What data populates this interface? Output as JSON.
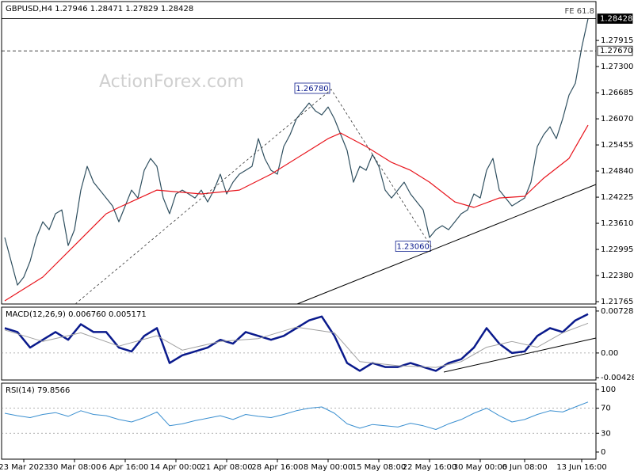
{
  "chart_data": [
    {
      "type": "line",
      "title": "GBPUSD,H4 1.27946 1.28471 1.27829 1.28428",
      "watermark": "ActionForex.com",
      "note": "FE 61.8",
      "xlim": [
        -0.5,
        93.25
      ],
      "ylim": [
        1.2171,
        1.2883
      ],
      "yticks": [
        1.27915,
        {
          "value": 1.273,
          "label": "1.27300"
        },
        1.26685,
        {
          "value": 1.2607,
          "label": "1.26070"
        },
        1.25455,
        {
          "value": 1.2484,
          "label": "1.24840"
        },
        1.24225,
        {
          "value": 1.2361,
          "label": "1.23610"
        },
        1.22995,
        {
          "value": 1.2238,
          "label": "1.22380"
        },
        1.21765
      ],
      "series": [
        {
          "color": "#2f4f5f",
          "values": [
            1.23275,
            1.22716,
            1.22156,
            1.22343,
            1.22716,
            1.23275,
            1.23647,
            1.23461,
            1.23834,
            1.23927,
            1.23088,
            1.23461,
            1.24393,
            1.24952,
            1.24579,
            1.24393,
            1.24206,
            1.2402,
            1.23647,
            1.2402,
            1.24393,
            1.24206,
            1.24859,
            1.25138,
            1.24952,
            1.24206,
            1.23834,
            1.243,
            1.24393,
            1.243,
            1.24206,
            1.24393,
            1.24113,
            1.24393,
            1.24766,
            1.243,
            1.24579,
            1.24766,
            1.24859,
            1.24952,
            1.25604,
            1.25138,
            1.24859,
            1.24766,
            1.25418,
            1.25697,
            1.2607,
            1.26256,
            1.26443,
            1.26256,
            1.26163,
            1.2635,
            1.2607,
            1.25697,
            1.25325,
            1.24579,
            1.24952,
            1.24859,
            1.25231,
            1.24952,
            1.24393,
            1.24206,
            1.24393,
            1.24579,
            1.243,
            1.24113,
            1.23927,
            1.23275,
            1.23461,
            1.23554,
            1.23461,
            1.23647,
            1.23834,
            1.23927,
            1.243,
            1.24206,
            1.24859,
            1.25138,
            1.24393,
            1.24206,
            1.2402,
            1.24113,
            1.24206,
            1.24579,
            1.25418,
            1.25697,
            1.25884,
            1.25604,
            1.2607,
            1.26629,
            1.26909,
            1.27747,
            1.28428
          ]
        },
        {
          "color": "#e8141c",
          "x": [
            0,
            6,
            11,
            16,
            18,
            24,
            31,
            37,
            42,
            47,
            51,
            53,
            57,
            61,
            64,
            67,
            71,
            74,
            78,
            82,
            85,
            89,
            92
          ],
          "values": [
            1.21784,
            1.22343,
            1.23088,
            1.23834,
            1.23983,
            1.24393,
            1.243,
            1.24393,
            1.24766,
            1.25231,
            1.25604,
            1.25735,
            1.25418,
            1.25045,
            1.24859,
            1.24579,
            1.24113,
            1.23983,
            1.24206,
            1.24244,
            1.24672,
            1.25138,
            1.25921
          ]
        }
      ],
      "price_lines": [
        {
          "value": 1.28428,
          "style": "solid"
        },
        {
          "value": 1.2767,
          "label": "1.27670",
          "style": "dashed"
        }
      ],
      "annotations": [
        {
          "x": 51.5,
          "value": 1.2678,
          "label": "1.26780"
        },
        {
          "x": 67.4,
          "value": 1.2306,
          "label": "1.23060"
        }
      ]
    },
    {
      "type": "line",
      "title": "MACD(12,26,9) 0.006760 0.005171",
      "xlim": [
        -0.5,
        93.25
      ],
      "ylim": [
        -0.00469,
        0.00796
      ],
      "yticks": [
        0.007286,
        {
          "value": 0,
          "label": "0.00"
        },
        -0.004282
      ],
      "levels": [
        0
      ],
      "series": [
        {
          "color": "#0a1a8c",
          "width": 2.5,
          "x": [
            0,
            2,
            4,
            6,
            8,
            10,
            12,
            14,
            16,
            18,
            20,
            22,
            24,
            26,
            28,
            30,
            32,
            34,
            36,
            38,
            40,
            42,
            44,
            46,
            48,
            50,
            52,
            54,
            56,
            58,
            60,
            62,
            64,
            66,
            68,
            70,
            72,
            74,
            76,
            78,
            80,
            82,
            84,
            86,
            88,
            90,
            92
          ],
          "values": [
            0.00432,
            0.00364,
            0.00094,
            0.00229,
            0.00364,
            0.00229,
            0.00499,
            0.00364,
            0.00364,
            0.00094,
            0.00027,
            0.00297,
            0.00432,
            -0.00175,
            -0.0004,
            0.00027,
            0.00094,
            0.00229,
            0.00162,
            0.00364,
            0.00297,
            0.00229,
            0.00297,
            0.00432,
            0.00567,
            0.00634,
            0.00297,
            -0.00175,
            -0.0031,
            -0.00175,
            -0.00243,
            -0.00243,
            -0.00175,
            -0.00243,
            -0.0031,
            -0.00175,
            -0.00108,
            0.00094,
            0.00432,
            0.00162,
            0,
            0.00027,
            0.00297,
            0.00432,
            0.00364,
            0.00567,
            0.00676
          ]
        },
        {
          "color": "#a0a0a0",
          "width": 1,
          "x": [
            0,
            6,
            12,
            18,
            24,
            28,
            34,
            40,
            46,
            52,
            56,
            62,
            68,
            72,
            76,
            80,
            84,
            88,
            92
          ],
          "values": [
            0.004,
            0.002,
            0.0035,
            0.0012,
            0.003,
            0.0005,
            0.002,
            0.0025,
            0.0045,
            0.0035,
            -0.0015,
            -0.0022,
            -0.0025,
            -0.0015,
            0.001,
            0.002,
            0.001,
            0.0035,
            0.005171
          ]
        }
      ]
    },
    {
      "type": "line",
      "title": "RSI(14) 79.8566",
      "xlim": [
        -0.5,
        93.25
      ],
      "ylim": [
        -11.4,
        110
      ],
      "yticks": [
        100,
        70,
        30,
        0
      ],
      "levels": [
        70,
        30
      ],
      "series": [
        {
          "color": "#3a8fd0",
          "width": 1,
          "x": [
            0,
            2,
            4,
            6,
            8,
            10,
            12,
            14,
            16,
            18,
            20,
            22,
            24,
            26,
            28,
            30,
            32,
            34,
            36,
            38,
            40,
            42,
            44,
            46,
            48,
            50,
            52,
            54,
            56,
            58,
            60,
            62,
            64,
            66,
            68,
            70,
            72,
            74,
            76,
            78,
            80,
            82,
            84,
            86,
            88,
            90,
            92
          ],
          "values": [
            62,
            58,
            55,
            60,
            63,
            57,
            66,
            60,
            58,
            52,
            48,
            55,
            64,
            42,
            45,
            50,
            54,
            58,
            52,
            60,
            57,
            55,
            60,
            66,
            70,
            72,
            62,
            45,
            38,
            44,
            42,
            40,
            46,
            42,
            36,
            45,
            52,
            62,
            70,
            58,
            48,
            52,
            60,
            66,
            64,
            72,
            79.8566
          ]
        }
      ],
      "xticks": [
        {
          "value": 3,
          "label": "23 Mar 2023"
        },
        {
          "value": 11,
          "label": "30 Mar 08:00"
        },
        {
          "value": 19,
          "label": "6 Apr 16:00"
        },
        {
          "value": 27,
          "label": "14 Apr 00:00"
        },
        {
          "value": 35,
          "label": "21 Apr 08:00"
        },
        {
          "value": 43,
          "label": "28 Apr 16:00"
        },
        {
          "value": 51,
          "label": "8 May 00:00"
        },
        {
          "value": 59,
          "label": "15 May 08:00"
        },
        {
          "value": 67,
          "label": "22 May 16:00"
        },
        {
          "value": 75,
          "label": "30 May 00:00"
        },
        {
          "value": 82,
          "label": "6 Jun 08:00"
        },
        {
          "value": 91,
          "label": "13 Jun 16:00"
        }
      ]
    }
  ]
}
